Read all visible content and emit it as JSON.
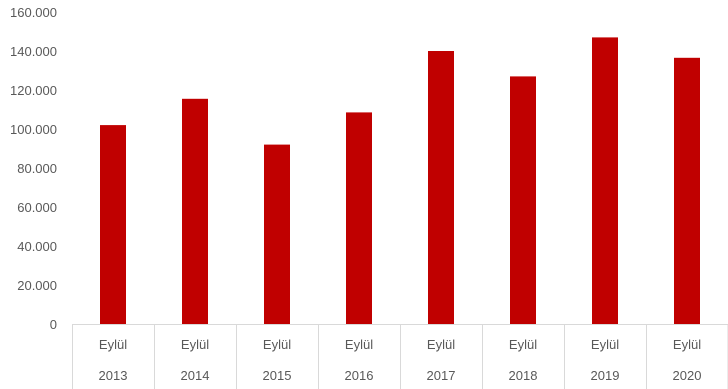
{
  "chart_data": {
    "type": "bar",
    "categories": [
      {
        "month": "Eylül",
        "year": "2013"
      },
      {
        "month": "Eylül",
        "year": "2014"
      },
      {
        "month": "Eylül",
        "year": "2015"
      },
      {
        "month": "Eylül",
        "year": "2016"
      },
      {
        "month": "Eylül",
        "year": "2017"
      },
      {
        "month": "Eylül",
        "year": "2018"
      },
      {
        "month": "Eylül",
        "year": "2019"
      },
      {
        "month": "Eylül",
        "year": "2020"
      }
    ],
    "values": [
      102000,
      115500,
      92000,
      108500,
      140000,
      127000,
      147000,
      136500
    ],
    "y_ticks": [
      "0",
      "20.000",
      "40.000",
      "60.000",
      "80.000",
      "100.000",
      "120.000",
      "140.000",
      "160.000"
    ],
    "ylim": [
      0,
      160000
    ],
    "title": "",
    "xlabel": "",
    "ylabel": "",
    "grid": false,
    "legend": "none",
    "colors": {
      "bar": "#C00000",
      "axis": "#D9D9D9",
      "text": "#595959"
    }
  }
}
